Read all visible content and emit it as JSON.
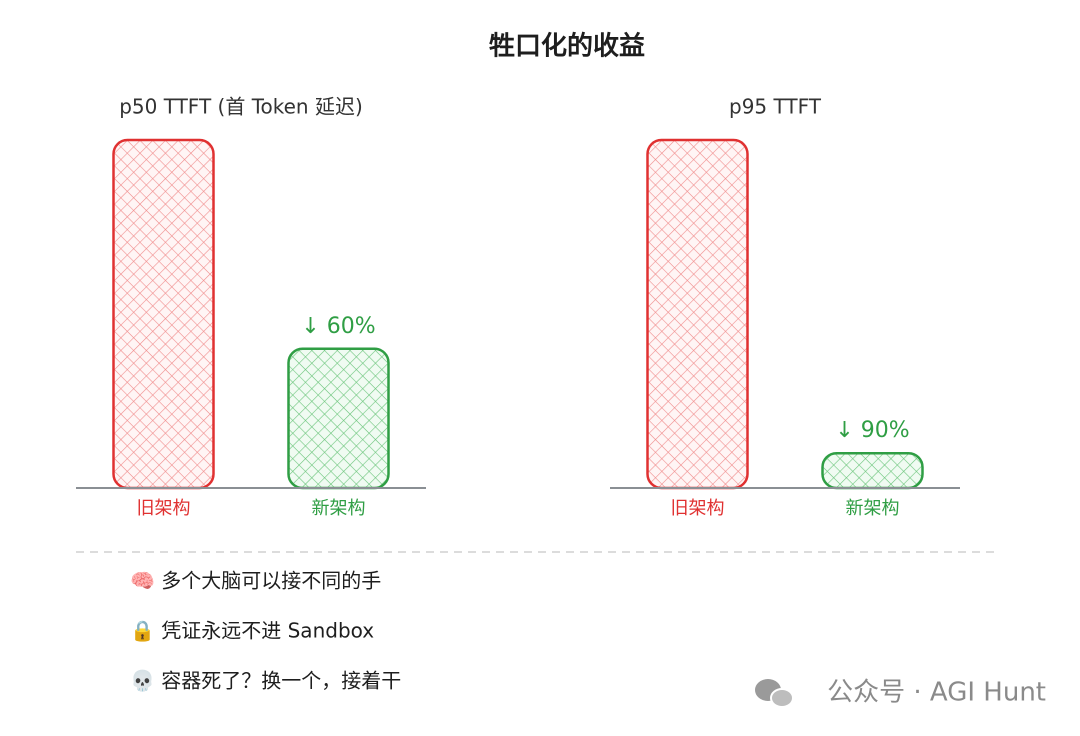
{
  "title": "牲口化的收益",
  "chart_data": [
    {
      "type": "bar",
      "title": "p50 TTFT (首 Token 延迟)",
      "categories": [
        "旧架构",
        "新架构"
      ],
      "values": [
        100,
        40
      ],
      "colors": [
        "#e03131",
        "#2f9e44"
      ],
      "annotation": "↓ 60%"
    },
    {
      "type": "bar",
      "title": "p95 TTFT",
      "categories": [
        "旧架构",
        "新架构"
      ],
      "values": [
        100,
        10
      ],
      "colors": [
        "#e03131",
        "#2f9e44"
      ],
      "annotation": "↓ 90%"
    }
  ],
  "notes": [
    "🧠 多个大脑可以接不同的手",
    "🔒 凭证永远不进 Sandbox",
    "💀 容器死了？换一个，接着干"
  ],
  "watermark": "公众号 · AGI Hunt"
}
